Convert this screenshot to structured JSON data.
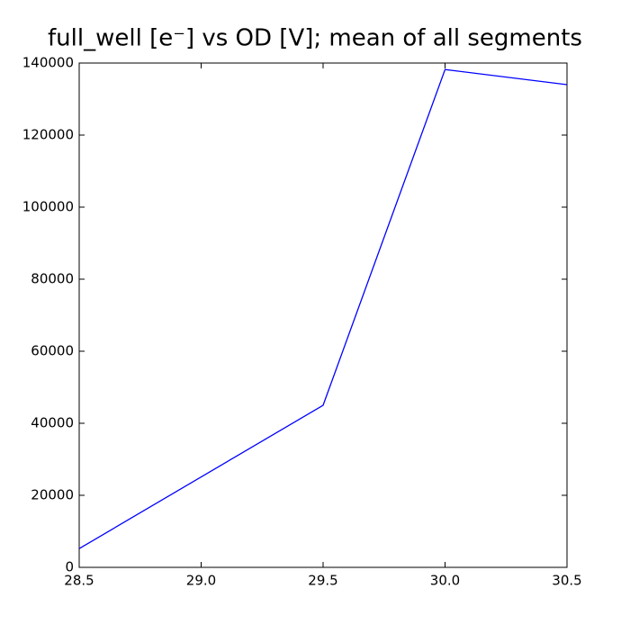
{
  "chart_data": {
    "type": "line",
    "title": "full_well [e⁻] vs OD [V]; mean of all segments",
    "x": [
      28.5,
      29.5,
      30.0,
      30.5
    ],
    "series": [
      {
        "name": "full_well",
        "color": "#0000ff",
        "values": [
          5200,
          45000,
          138200,
          134000
        ]
      }
    ],
    "xlim": [
      28.5,
      30.5
    ],
    "xticks": [
      28.5,
      {
        "value": 29.0,
        "label": "29.0"
      },
      29.5,
      {
        "value": 30.0,
        "label": "30.0"
      },
      30.5
    ],
    "ylim": [
      0,
      140000
    ],
    "yticks": [
      0,
      20000,
      40000,
      60000,
      80000,
      100000,
      120000,
      140000
    ],
    "grid": false
  }
}
